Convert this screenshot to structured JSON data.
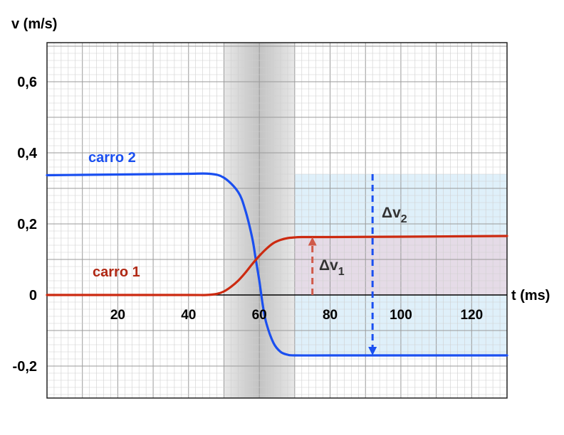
{
  "chart_data": {
    "type": "line",
    "ylabel": "v (m/s)",
    "xlabel": "t (ms)",
    "xlim": [
      0,
      130
    ],
    "ylim": [
      -0.29,
      0.71
    ],
    "xticks": [
      {
        "value": 20,
        "label": "20"
      },
      {
        "value": 40,
        "label": "40"
      },
      {
        "value": 60,
        "label": "60"
      },
      {
        "value": 80,
        "label": "80"
      },
      {
        "value": 100,
        "label": "100"
      },
      {
        "value": 120,
        "label": "120"
      }
    ],
    "yticks": [
      {
        "value": 0.6,
        "label": "0,6"
      },
      {
        "value": 0.4,
        "label": "0,4"
      },
      {
        "value": 0.2,
        "label": "0,2"
      },
      {
        "value": 0.0,
        "label": "0"
      },
      {
        "value": -0.2,
        "label": "-0,2"
      }
    ],
    "grid": true,
    "collision_band": {
      "x_start": 50,
      "x_end": 70
    },
    "series": [
      {
        "name": "carro 2",
        "color": "#1a4ff0",
        "x": [
          0,
          10,
          20,
          30,
          40,
          46,
          50,
          54,
          56,
          58,
          59,
          60,
          61,
          62,
          64,
          66,
          68,
          70,
          80,
          100,
          130
        ],
        "y": [
          0.337,
          0.338,
          0.339,
          0.34,
          0.341,
          0.341,
          0.33,
          0.29,
          0.24,
          0.16,
          0.1,
          0.04,
          -0.03,
          -0.08,
          -0.135,
          -0.16,
          -0.168,
          -0.17,
          -0.17,
          -0.17,
          -0.17
        ]
      },
      {
        "name": "carro 1",
        "color": "#cc2a10",
        "x": [
          0,
          20,
          40,
          45,
          48,
          50,
          52,
          54,
          56,
          58,
          60,
          62,
          64,
          66,
          68,
          70,
          72,
          80,
          100,
          130
        ],
        "y": [
          0.0,
          0.0,
          0.0,
          0.0,
          0.003,
          0.01,
          0.023,
          0.04,
          0.062,
          0.087,
          0.11,
          0.13,
          0.146,
          0.155,
          0.16,
          0.162,
          0.163,
          0.163,
          0.164,
          0.166
        ]
      }
    ],
    "annotations": [
      {
        "label": "Δv",
        "sub": "1",
        "color": "#d05a4a",
        "x": 75,
        "y_from": 0.0,
        "y_to": 0.163
      },
      {
        "label": "Δv",
        "sub": "2",
        "color": "#1a4ff0",
        "x": 92,
        "y_from": 0.34,
        "y_to": -0.17
      }
    ],
    "shaded_regions": [
      {
        "color": "#dbeefa",
        "x_from": 70,
        "x_to": 130,
        "y_from": -0.17,
        "y_to": 0.34
      },
      {
        "color": "#e6d8e4",
        "x_from": 70,
        "x_to": 130,
        "y_from": 0.0,
        "y_to": 0.164
      }
    ]
  }
}
